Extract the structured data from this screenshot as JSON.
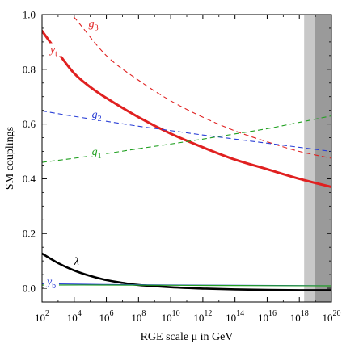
{
  "chart_data": {
    "type": "line",
    "xlabel": "RGE scale μ in GeV",
    "ylabel": "SM couplings",
    "x_scale": "log10",
    "xlim": [
      100,
      1e+20
    ],
    "ylim": [
      -0.05,
      1.0
    ],
    "x_ticks": [
      {
        "exp": 2,
        "base": "10",
        "sup": "2"
      },
      {
        "exp": 4,
        "base": "10",
        "sup": "4"
      },
      {
        "exp": 6,
        "base": "10",
        "sup": "6"
      },
      {
        "exp": 8,
        "base": "10",
        "sup": "8"
      },
      {
        "exp": 10,
        "base": "10",
        "sup": "10"
      },
      {
        "exp": 12,
        "base": "10",
        "sup": "12"
      },
      {
        "exp": 14,
        "base": "10",
        "sup": "14"
      },
      {
        "exp": 16,
        "base": "10",
        "sup": "16"
      },
      {
        "exp": 18,
        "base": "10",
        "sup": "18"
      },
      {
        "exp": 20,
        "base": "10",
        "sup": "20"
      }
    ],
    "y_ticks": [
      {
        "value": 0.0,
        "label": "0.0"
      },
      {
        "value": 0.2,
        "label": "0.2"
      },
      {
        "value": 0.4,
        "label": "0.4"
      },
      {
        "value": 0.6,
        "label": "0.6"
      },
      {
        "value": 0.8,
        "label": "0.8"
      },
      {
        "value": 1.0,
        "label": "1.0"
      }
    ],
    "bands": [
      {
        "from_exp": 18.3,
        "to_exp": 18.95,
        "color": "#c8c8c8"
      },
      {
        "from_exp": 18.95,
        "to_exp": 20,
        "color": "#9a9a9a"
      }
    ],
    "series": [
      {
        "key": "g3",
        "base": "g",
        "sub": "3",
        "label_exp": 4.9,
        "label_value": 0.955,
        "color": "#e02020",
        "dash": "dashed",
        "width": 1.1,
        "points": [
          [
            2,
            1.16
          ],
          [
            3,
            1.05
          ],
          [
            4,
            0.99
          ],
          [
            6,
            0.85
          ],
          [
            8,
            0.76
          ],
          [
            10,
            0.685
          ],
          [
            12,
            0.625
          ],
          [
            14,
            0.575
          ],
          [
            16,
            0.535
          ],
          [
            18,
            0.5
          ],
          [
            20,
            0.475
          ]
        ]
      },
      {
        "key": "yt",
        "base": "y",
        "sub": "t",
        "label_exp": 2.5,
        "label_value": 0.86,
        "color": "#e02020",
        "dash": "solid",
        "width": 3,
        "points": [
          [
            2,
            0.94
          ],
          [
            3,
            0.86
          ],
          [
            4,
            0.785
          ],
          [
            5,
            0.735
          ],
          [
            6,
            0.695
          ],
          [
            8,
            0.625
          ],
          [
            10,
            0.565
          ],
          [
            12,
            0.515
          ],
          [
            14,
            0.47
          ],
          [
            16,
            0.435
          ],
          [
            18,
            0.4
          ],
          [
            20,
            0.37
          ]
        ]
      },
      {
        "key": "g2",
        "base": "g",
        "sub": "2",
        "label_exp": 5.1,
        "label_value": 0.622,
        "color": "#2a3fd6",
        "dash": "dashed",
        "width": 1.1,
        "points": [
          [
            2,
            0.648
          ],
          [
            4,
            0.628
          ],
          [
            6,
            0.61
          ],
          [
            8,
            0.592
          ],
          [
            10,
            0.576
          ],
          [
            12,
            0.56
          ],
          [
            14,
            0.545
          ],
          [
            16,
            0.53
          ],
          [
            18,
            0.515
          ],
          [
            20,
            0.5
          ]
        ]
      },
      {
        "key": "g1",
        "base": "g",
        "sub": "1",
        "label_exp": 5.1,
        "label_value": 0.487,
        "color": "#20a020",
        "dash": "dashed",
        "width": 1.1,
        "points": [
          [
            2,
            0.46
          ],
          [
            4,
            0.475
          ],
          [
            6,
            0.492
          ],
          [
            8,
            0.51
          ],
          [
            10,
            0.527
          ],
          [
            12,
            0.545
          ],
          [
            14,
            0.564
          ],
          [
            16,
            0.583
          ],
          [
            18,
            0.606
          ],
          [
            20,
            0.63
          ]
        ]
      },
      {
        "key": "lambda",
        "base": "λ",
        "sub": "",
        "label_exp": 4.0,
        "label_value": 0.085,
        "color": "#000000",
        "dash": "solid",
        "width": 2.6,
        "points": [
          [
            2,
            0.127
          ],
          [
            3,
            0.092
          ],
          [
            4,
            0.065
          ],
          [
            5,
            0.045
          ],
          [
            6,
            0.03
          ],
          [
            7,
            0.02
          ],
          [
            8,
            0.012
          ],
          [
            10,
            0.004
          ],
          [
            12,
            -0.001
          ],
          [
            14,
            -0.004
          ],
          [
            16,
            -0.006
          ],
          [
            18,
            -0.007
          ],
          [
            20,
            -0.007
          ]
        ]
      },
      {
        "key": "yb",
        "base": "y",
        "sub": "b",
        "label_exp": 2.3,
        "label_value": 0.012,
        "color": "#2a3fd6",
        "dash": "solid",
        "width": 1.1,
        "points": [
          [
            2,
            0.017
          ],
          [
            6,
            0.014
          ],
          [
            10,
            0.012
          ],
          [
            14,
            0.011
          ],
          [
            20,
            0.009
          ]
        ]
      },
      {
        "key": "green_flat",
        "base": "",
        "sub": "",
        "label_exp": null,
        "label_value": null,
        "color": "#20a020",
        "dash": "solid",
        "width": 1.2,
        "points": [
          [
            2,
            0.012
          ],
          [
            6,
            0.012
          ],
          [
            10,
            0.011
          ],
          [
            14,
            0.01
          ],
          [
            20,
            0.009
          ]
        ]
      }
    ]
  }
}
